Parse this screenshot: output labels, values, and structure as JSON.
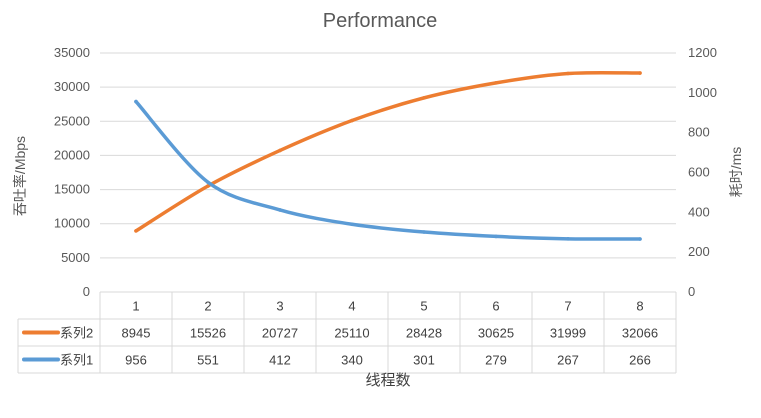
{
  "chart_data": {
    "type": "line",
    "title": "Performance",
    "xlabel": "线程数",
    "ylabel": "吞吐率/Mbps",
    "y2label": "耗时/ms",
    "categories": [
      "1",
      "2",
      "3",
      "4",
      "5",
      "6",
      "7",
      "8"
    ],
    "ylim": [
      0,
      35000
    ],
    "y2lim": [
      0,
      1200
    ],
    "yticks": [
      0,
      5000,
      10000,
      15000,
      20000,
      25000,
      30000,
      35000
    ],
    "y2ticks": [
      0,
      200,
      400,
      600,
      800,
      1000,
      1200
    ],
    "grid": true,
    "legend_placement": "data-table",
    "series": [
      {
        "name": "系列2",
        "axis": "left",
        "color": "#ED7D31",
        "values": [
          8945,
          15526,
          20727,
          25110,
          28428,
          30625,
          31999,
          32066
        ]
      },
      {
        "name": "系列1",
        "axis": "right",
        "color": "#5B9BD5",
        "values": [
          956,
          551,
          412,
          340,
          301,
          279,
          267,
          266
        ]
      }
    ]
  }
}
